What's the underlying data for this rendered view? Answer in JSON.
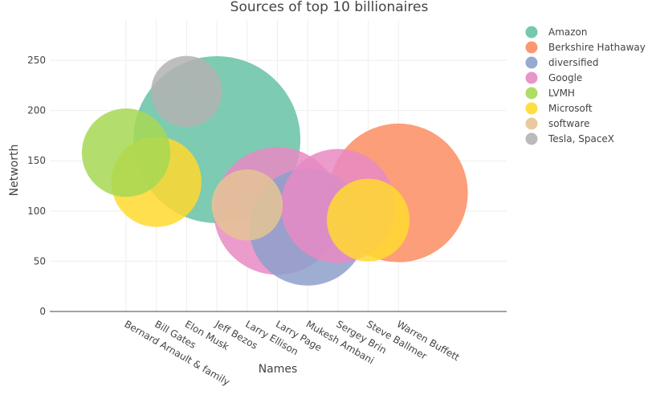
{
  "chart_data": {
    "type": "scatter",
    "title": "Sources of top 10 billionaires",
    "xlabel": "Names",
    "ylabel": "Networth",
    "ylim": [
      0,
      290
    ],
    "yticks": [
      0,
      50,
      100,
      150,
      200,
      250
    ],
    "grid": true,
    "legend_position": "top-right",
    "categories": [
      "Bernard Arnault & family",
      "Bill Gates",
      "Elon Musk",
      "Jeff Bezos",
      "Larry Ellison",
      "Larry Page",
      "Mukesh Ambani",
      "Sergey Brin",
      "Steve Ballmer",
      "Warren Buffett"
    ],
    "series": [
      {
        "name": "Amazon",
        "color": "#66c2a5",
        "points": [
          {
            "x": "Jeff Bezos",
            "y": 171,
            "size": 171
          }
        ]
      },
      {
        "name": "Berkshire Hathaway",
        "color": "#fc8d62",
        "points": [
          {
            "x": "Warren Buffett",
            "y": 118,
            "size": 118
          }
        ]
      },
      {
        "name": "diversified",
        "color": "#8da0cb",
        "points": [
          {
            "x": "Mukesh Ambani",
            "y": 84,
            "size": 84
          }
        ]
      },
      {
        "name": "Google",
        "color": "#e78ac3",
        "points": [
          {
            "x": "Larry Page",
            "y": 100,
            "size": 100
          },
          {
            "x": "Sergey Brin",
            "y": 105,
            "size": 80
          }
        ]
      },
      {
        "name": "LVMH",
        "color": "#a6d854",
        "points": [
          {
            "x": "Bernard Arnault & family",
            "y": 158,
            "size": 48
          }
        ]
      },
      {
        "name": "Microsoft",
        "color": "#ffd92f",
        "points": [
          {
            "x": "Bill Gates",
            "y": 129,
            "size": 50
          },
          {
            "x": "Steve Ballmer",
            "y": 91,
            "size": 42
          }
        ]
      },
      {
        "name": "software",
        "color": "#e5c494",
        "points": [
          {
            "x": "Larry Ellison",
            "y": 106,
            "size": 31
          }
        ]
      },
      {
        "name": "Tesla, SpaceX",
        "color": "#b3b3b3",
        "points": [
          {
            "x": "Elon Musk",
            "y": 219,
            "size": 31
          }
        ]
      }
    ]
  }
}
